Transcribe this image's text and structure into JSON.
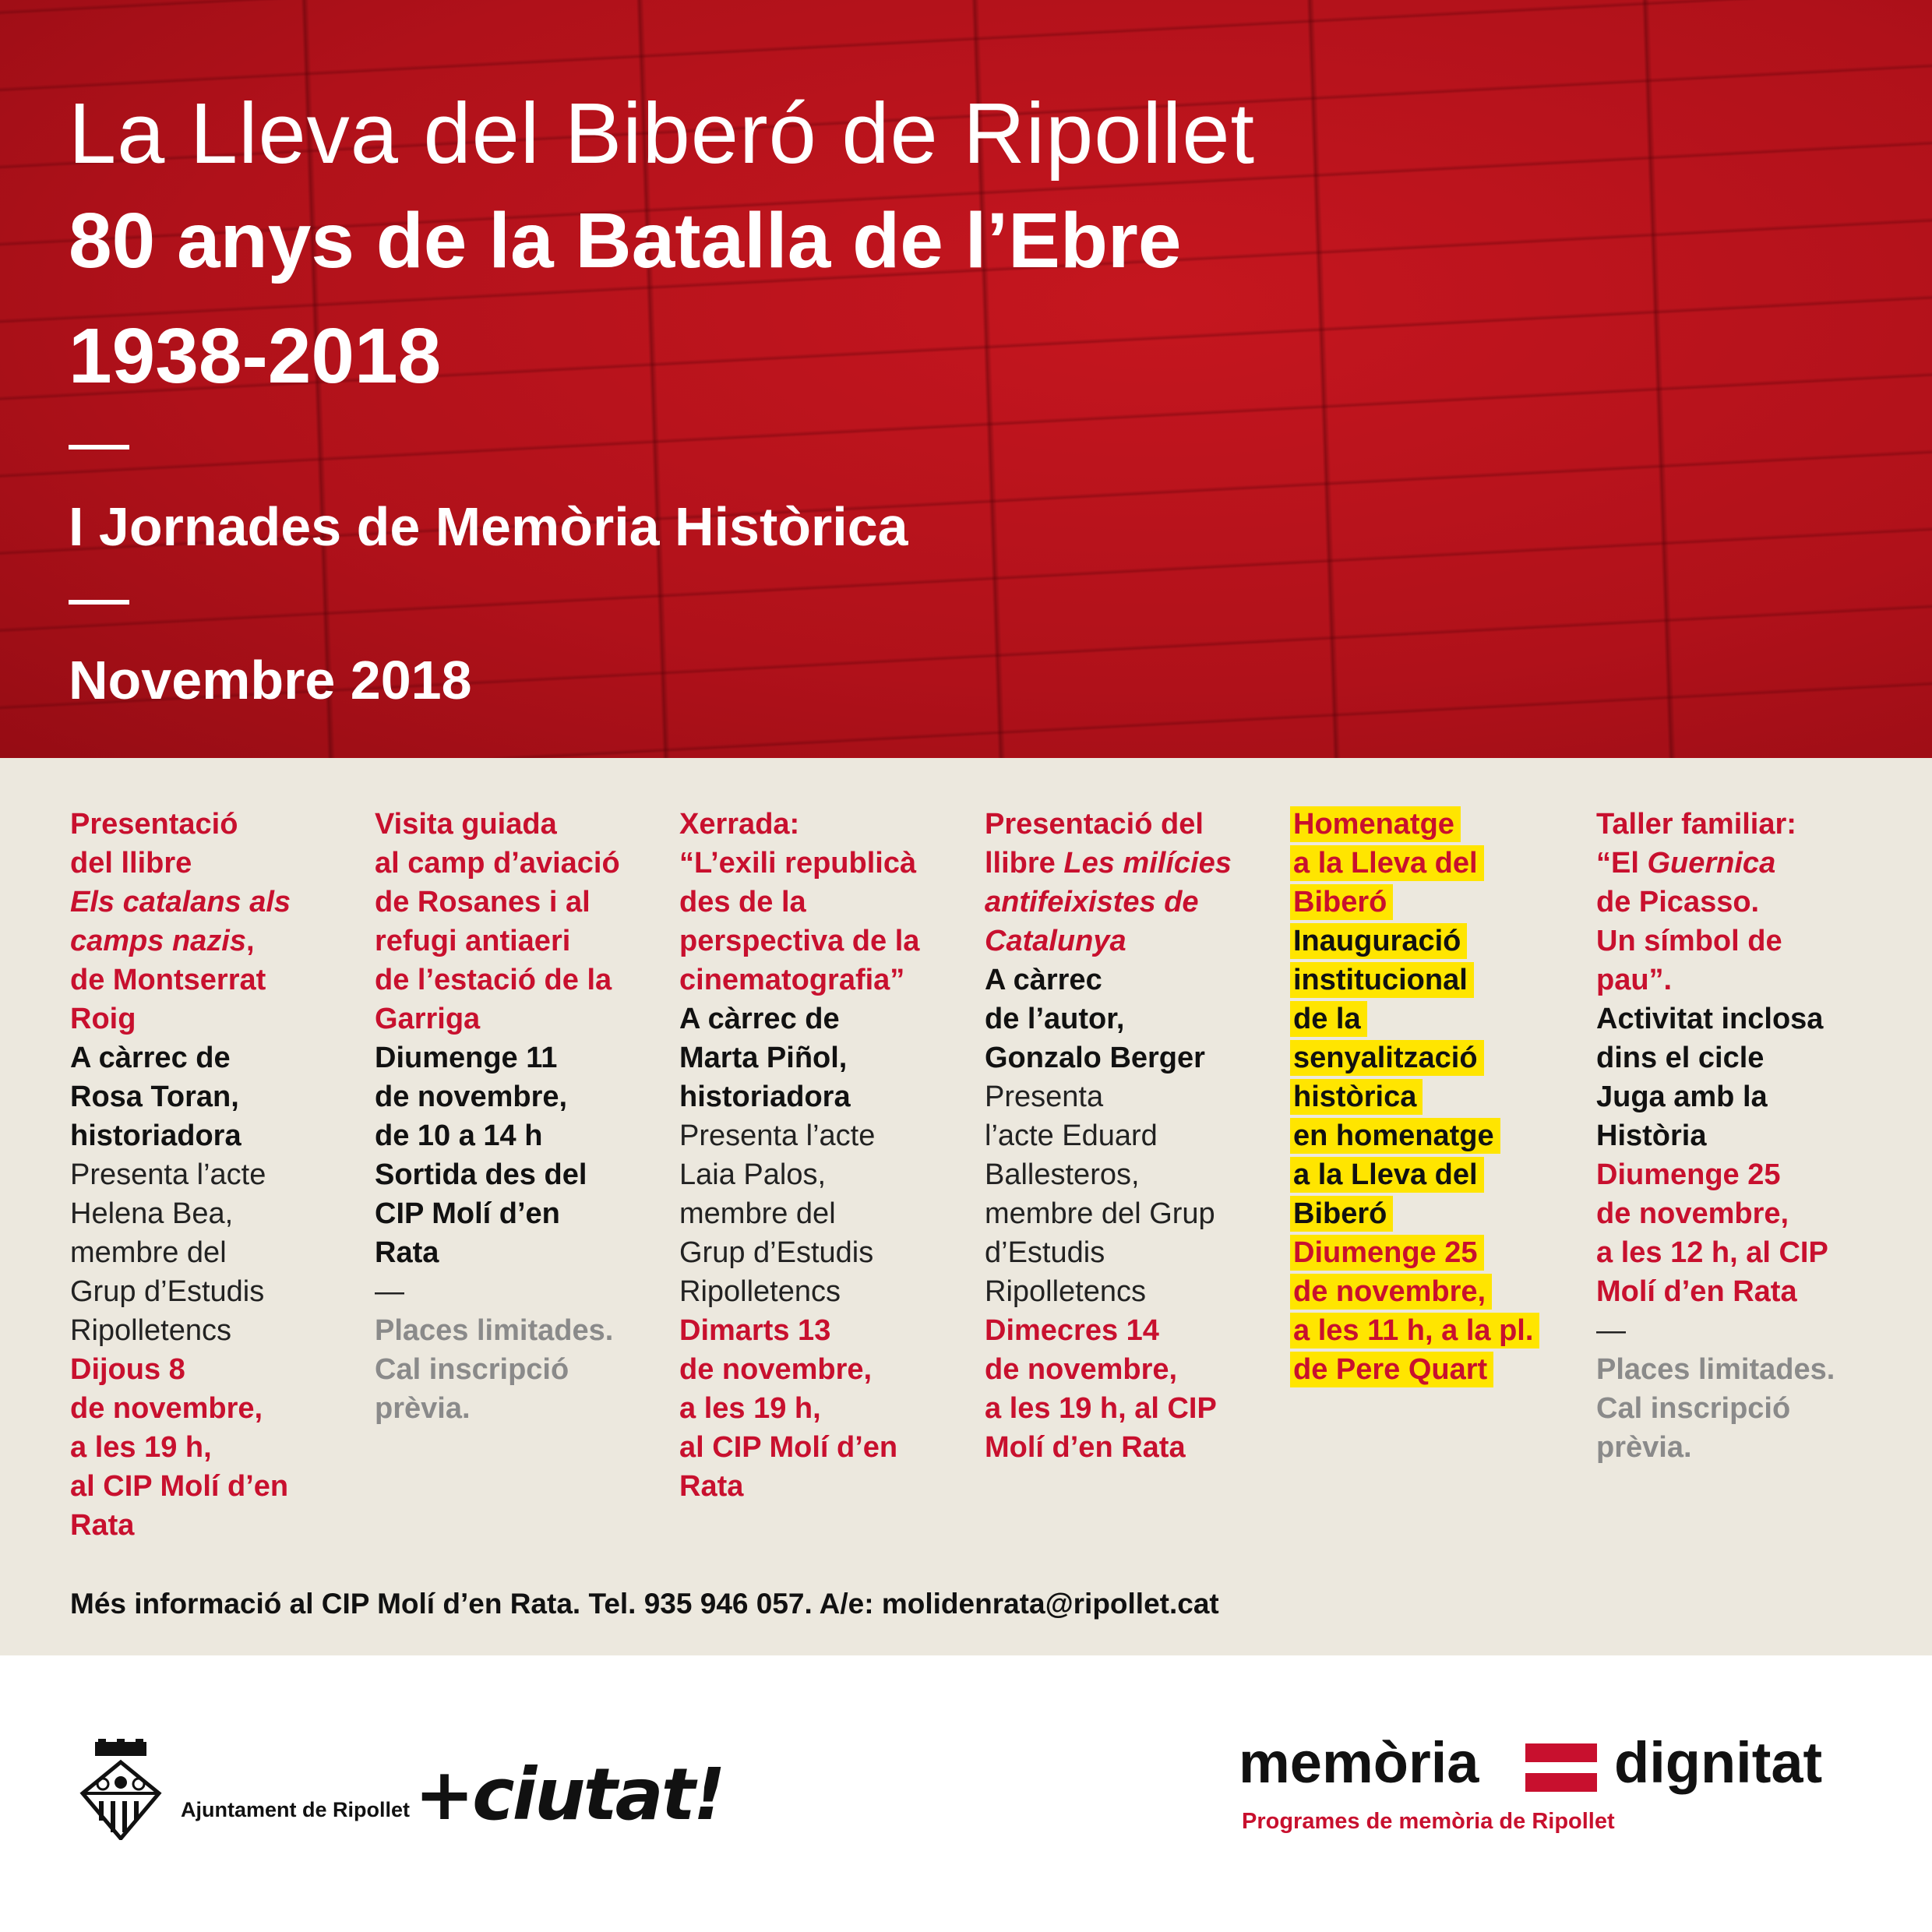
{
  "header": {
    "title": "La Lleva del Biberó de Ripollet",
    "subtitle": "80 anys de la Batalla de l’Ebre",
    "years": "1938-2018",
    "event": "I Jornades de Memòria Històrica",
    "date": "Novembre 2018"
  },
  "columns": [
    {
      "lines": [
        [
          {
            "t": "Presentació",
            "s": "r"
          }
        ],
        [
          {
            "t": "del llibre",
            "s": "r"
          }
        ],
        [
          {
            "t": "Els catalans als",
            "s": "ri"
          }
        ],
        [
          {
            "t": "camps nazis",
            "s": "ri"
          },
          {
            "t": ",",
            "s": "r"
          }
        ],
        [
          {
            "t": "de Montserrat",
            "s": "r"
          }
        ],
        [
          {
            "t": "Roig",
            "s": "r"
          }
        ],
        [
          {
            "t": "A càrrec de",
            "s": "k"
          }
        ],
        [
          {
            "t": "Rosa Toran,",
            "s": "k"
          }
        ],
        [
          {
            "t": "historiadora",
            "s": "k"
          }
        ],
        [
          {
            "t": "Presenta l’acte",
            "s": "n"
          }
        ],
        [
          {
            "t": "Helena Bea,",
            "s": "n"
          }
        ],
        [
          {
            "t": "membre del",
            "s": "n"
          }
        ],
        [
          {
            "t": "Grup d’Estudis",
            "s": "n"
          }
        ],
        [
          {
            "t": "Ripolletencs",
            "s": "n"
          }
        ],
        [
          {
            "t": "Dijous 8",
            "s": "r"
          }
        ],
        [
          {
            "t": "de novembre,",
            "s": "r"
          }
        ],
        [
          {
            "t": "a les 19 h,",
            "s": "r"
          }
        ],
        [
          {
            "t": "al CIP Molí d’en",
            "s": "r"
          }
        ],
        [
          {
            "t": "Rata",
            "s": "r"
          }
        ]
      ]
    },
    {
      "lines": [
        [
          {
            "t": "Visita guiada",
            "s": "r"
          }
        ],
        [
          {
            "t": "al camp d’aviació",
            "s": "r"
          }
        ],
        [
          {
            "t": "de Rosanes i al",
            "s": "r"
          }
        ],
        [
          {
            "t": "refugi antiaeri",
            "s": "r"
          }
        ],
        [
          {
            "t": "de l’estació de la",
            "s": "r"
          }
        ],
        [
          {
            "t": "Garriga",
            "s": "r"
          }
        ],
        [
          {
            "t": "Diumenge 11",
            "s": "k"
          }
        ],
        [
          {
            "t": "de novembre,",
            "s": "k"
          }
        ],
        [
          {
            "t": "de 10 a 14 h",
            "s": "k"
          }
        ],
        [
          {
            "t": "Sortida des del",
            "s": "k"
          }
        ],
        [
          {
            "t": "CIP Molí d’en",
            "s": "k"
          }
        ],
        [
          {
            "t": "Rata",
            "s": "k"
          }
        ],
        [
          {
            "t": "—",
            "s": "n"
          }
        ],
        [
          {
            "t": "Places limitades.",
            "s": "g"
          }
        ],
        [
          {
            "t": "Cal inscripció",
            "s": "g"
          }
        ],
        [
          {
            "t": "prèvia.",
            "s": "g"
          }
        ]
      ]
    },
    {
      "lines": [
        [
          {
            "t": "Xerrada:",
            "s": "r"
          }
        ],
        [
          {
            "t": "“L’exili republicà",
            "s": "r"
          }
        ],
        [
          {
            "t": "des de la",
            "s": "r"
          }
        ],
        [
          {
            "t": "perspectiva de la",
            "s": "r"
          }
        ],
        [
          {
            "t": "cinematografia”",
            "s": "r"
          }
        ],
        [
          {
            "t": "A càrrec de",
            "s": "k"
          }
        ],
        [
          {
            "t": "Marta Piñol,",
            "s": "k"
          }
        ],
        [
          {
            "t": "historiadora",
            "s": "k"
          }
        ],
        [
          {
            "t": "Presenta l’acte",
            "s": "n"
          }
        ],
        [
          {
            "t": "Laia Palos,",
            "s": "n"
          }
        ],
        [
          {
            "t": "membre del",
            "s": "n"
          }
        ],
        [
          {
            "t": "Grup d’Estudis",
            "s": "n"
          }
        ],
        [
          {
            "t": "Ripolletencs",
            "s": "n"
          }
        ],
        [
          {
            "t": "Dimarts 13",
            "s": "r"
          }
        ],
        [
          {
            "t": "de novembre,",
            "s": "r"
          }
        ],
        [
          {
            "t": "a les 19 h,",
            "s": "r"
          }
        ],
        [
          {
            "t": "al CIP Molí d’en",
            "s": "r"
          }
        ],
        [
          {
            "t": "Rata",
            "s": "r"
          }
        ]
      ]
    },
    {
      "lines": [
        [
          {
            "t": "Presentació del",
            "s": "r"
          }
        ],
        [
          {
            "t": "llibre ",
            "s": "r"
          },
          {
            "t": "Les milícies",
            "s": "ri"
          }
        ],
        [
          {
            "t": "antifeixistes de",
            "s": "ri"
          }
        ],
        [
          {
            "t": "Catalunya",
            "s": "ri"
          }
        ],
        [
          {
            "t": "A càrrec",
            "s": "k"
          }
        ],
        [
          {
            "t": "de l’autor,",
            "s": "k"
          }
        ],
        [
          {
            "t": "Gonzalo Berger",
            "s": "k"
          }
        ],
        [
          {
            "t": "Presenta",
            "s": "n"
          }
        ],
        [
          {
            "t": "l’acte Eduard",
            "s": "n"
          }
        ],
        [
          {
            "t": "Ballesteros,",
            "s": "n"
          }
        ],
        [
          {
            "t": "membre del Grup",
            "s": "n"
          }
        ],
        [
          {
            "t": "d’Estudis",
            "s": "n"
          }
        ],
        [
          {
            "t": "Ripolletencs",
            "s": "n"
          }
        ],
        [
          {
            "t": "Dimecres 14",
            "s": "r"
          }
        ],
        [
          {
            "t": "de novembre,",
            "s": "r"
          }
        ],
        [
          {
            "t": "a les 19 h, al CIP",
            "s": "r"
          }
        ],
        [
          {
            "t": "Molí d’en Rata",
            "s": "r"
          }
        ]
      ]
    },
    {
      "lines": [
        [
          {
            "t": "Homenatge",
            "s": "yr"
          }
        ],
        [
          {
            "t": "a la Lleva del",
            "s": "yr"
          }
        ],
        [
          {
            "t": "Biberó",
            "s": "yr"
          }
        ],
        [
          {
            "t": "Inauguració",
            "s": "y"
          }
        ],
        [
          {
            "t": "institucional",
            "s": "y"
          }
        ],
        [
          {
            "t": "de la",
            "s": "y"
          }
        ],
        [
          {
            "t": "senyalització",
            "s": "y"
          }
        ],
        [
          {
            "t": "històrica",
            "s": "y"
          }
        ],
        [
          {
            "t": "en homenatge",
            "s": "y"
          }
        ],
        [
          {
            "t": "a la Lleva del",
            "s": "y"
          }
        ],
        [
          {
            "t": "Biberó",
            "s": "y"
          }
        ],
        [
          {
            "t": "Diumenge 25",
            "s": "yr"
          }
        ],
        [
          {
            "t": "de novembre,",
            "s": "yr"
          }
        ],
        [
          {
            "t": "a les 11 h, a la pl.",
            "s": "yr"
          }
        ],
        [
          {
            "t": "de Pere Quart",
            "s": "yr"
          }
        ]
      ]
    },
    {
      "lines": [
        [
          {
            "t": "Taller familiar:",
            "s": "r"
          }
        ],
        [
          {
            "t": "“El ",
            "s": "r"
          },
          {
            "t": "Guernica",
            "s": "ri"
          }
        ],
        [
          {
            "t": "de Picasso.",
            "s": "r"
          }
        ],
        [
          {
            "t": "Un símbol de",
            "s": "r"
          }
        ],
        [
          {
            "t": "pau”.",
            "s": "r"
          }
        ],
        [
          {
            "t": "Activitat inclosa",
            "s": "k"
          }
        ],
        [
          {
            "t": "dins el cicle",
            "s": "k"
          }
        ],
        [
          {
            "t": "Juga amb la",
            "s": "k"
          }
        ],
        [
          {
            "t": "Història",
            "s": "k"
          }
        ],
        [
          {
            "t": "Diumenge 25",
            "s": "r"
          }
        ],
        [
          {
            "t": "de novembre,",
            "s": "r"
          }
        ],
        [
          {
            "t": "a les 12 h, al CIP",
            "s": "r"
          }
        ],
        [
          {
            "t": "Molí d’en Rata",
            "s": "r"
          }
        ],
        [
          {
            "t": "—",
            "s": "n"
          }
        ],
        [
          {
            "t": "Places limitades.",
            "s": "g"
          }
        ],
        [
          {
            "t": "Cal inscripció",
            "s": "g"
          }
        ],
        [
          {
            "t": "prèvia.",
            "s": "g"
          }
        ]
      ]
    }
  ],
  "info": "Més informació al CIP Molí d’en Rata. Tel. 935 946 057. A/e: molidenrata@ripollet.cat",
  "footer": {
    "council": "Ajuntament de Ripollet",
    "slogan": "+ciutat!",
    "brand_left": "memòria",
    "brand_right": "dignitat",
    "brand_sub": "Programes de memòria de Ripollet"
  }
}
